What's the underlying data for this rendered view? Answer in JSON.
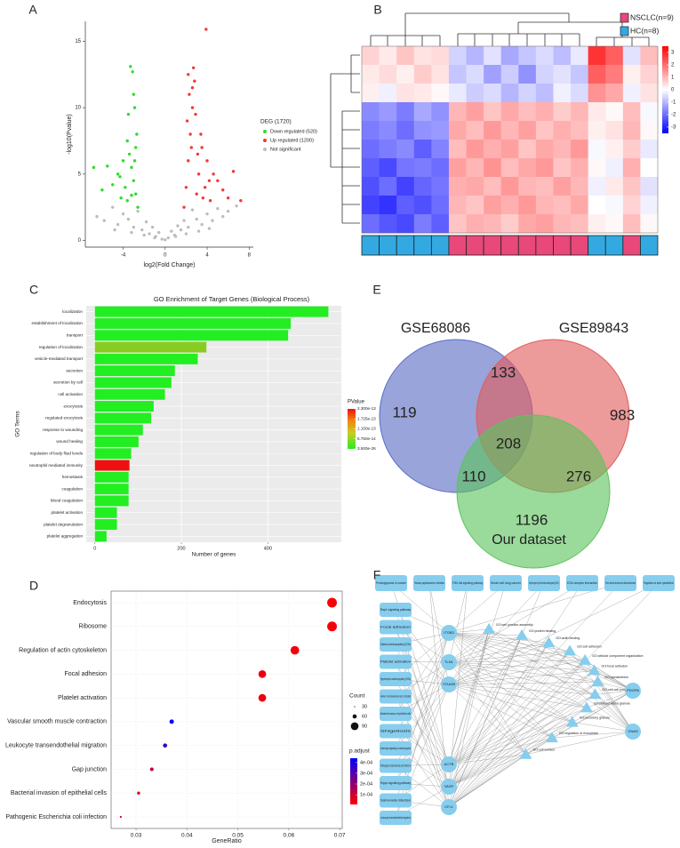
{
  "chart_data": [
    {
      "label": "A",
      "type": "scatter",
      "x_label": "log2(Fold Change)",
      "y_label": "-log10(Pvalue)",
      "xlim": [
        -7.6,
        8.4
      ],
      "ylim": [
        -0.5,
        16.5
      ],
      "xticks": [
        -4,
        0,
        4,
        8
      ],
      "yticks": [
        0,
        5,
        10,
        15
      ],
      "legend_title": "DEG (1720)",
      "series": [
        {
          "name": "Down regulated (520)",
          "color": "#2edb2e",
          "x": [
            -2.6,
            -2.8,
            -3,
            -3.2,
            -3.4,
            -3.6,
            -2.7,
            -2.9,
            -3.1,
            -3.5,
            -3.8,
            -4,
            -4.2,
            -4.5,
            -5,
            -5.5,
            -6,
            -6.8,
            -3.3,
            -2.8,
            -3,
            -3.6,
            -4.3,
            -2.9,
            -3.2
          ],
          "y": [
            2.5,
            3.5,
            4.5,
            5.5,
            6.5,
            3.0,
            8.0,
            10.0,
            12.7,
            9.5,
            4.0,
            6.0,
            3.2,
            5.0,
            4.2,
            5.6,
            3.8,
            5.5,
            13.1,
            7.0,
            11.0,
            7.5,
            4.8,
            6.0,
            3.4
          ]
        },
        {
          "name": "Up regulated (1200)",
          "color": "#ee3b3b",
          "x": [
            1.8,
            2,
            2.2,
            2.4,
            2.6,
            2.8,
            3,
            3.2,
            3.5,
            3.8,
            4,
            4.3,
            4.6,
            5,
            5.5,
            6,
            6.5,
            7.2,
            2.1,
            2.3,
            2.5,
            2.7,
            2.9,
            3.9,
            2.2,
            3.1,
            3.6,
            4.2,
            2.6,
            3.4
          ],
          "y": [
            2.5,
            4,
            6,
            8,
            10,
            12,
            3.5,
            5,
            7,
            4,
            6,
            3,
            5,
            4.5,
            3.8,
            3.2,
            5.2,
            3,
            9,
            11,
            7,
            13,
            9.5,
            15.9,
            12.5,
            6.5,
            3.2,
            4.5,
            11.5,
            8
          ]
        },
        {
          "name": "Not significant",
          "color": "#bdbdbd",
          "x": [
            -6.5,
            -5.8,
            -5,
            -4.5,
            -4,
            -3.5,
            -3,
            -2.6,
            -2.2,
            -1.8,
            -1.5,
            -1.2,
            -0.9,
            -0.6,
            -0.3,
            0,
            0.3,
            0.6,
            0.9,
            1.2,
            1.5,
            1.8,
            2.2,
            2.6,
            3,
            3.5,
            4,
            4.5,
            5,
            5.5,
            6,
            6.8,
            -3.2,
            -2,
            -1,
            1,
            2,
            3.2,
            4.2,
            -4.8
          ],
          "y": [
            1.8,
            1.5,
            2.5,
            1.2,
            2.0,
            1.6,
            1.0,
            2.2,
            0.8,
            1.4,
            0.5,
            1.0,
            0.3,
            0.6,
            0.1,
            0.05,
            0.2,
            0.7,
            0.4,
            1.1,
            0.8,
            1.5,
            1.0,
            2.3,
            1.6,
            1.2,
            2.0,
            1.5,
            2.4,
            1.8,
            2.2,
            2.6,
            0.6,
            0.4,
            0.2,
            0.3,
            0.5,
            0.7,
            0.9,
            0.8
          ]
        }
      ]
    },
    {
      "label": "B",
      "type": "heatmap",
      "groups": [
        {
          "name": "NSCLC(n=9)",
          "color": "#e8487a"
        },
        {
          "name": "HC(n=8)",
          "color": "#33a9e2"
        }
      ],
      "column_group": [
        1,
        1,
        1,
        1,
        1,
        0,
        0,
        0,
        0,
        0,
        0,
        0,
        0,
        1,
        1,
        0,
        1
      ],
      "clim": [
        -3.5,
        3.5
      ],
      "colorbar_ticks": [
        3,
        2,
        1,
        0,
        -1,
        -2,
        -3
      ],
      "values": [
        [
          0.6,
          0.3,
          0.8,
          0.4,
          0.5,
          -0.6,
          -1.0,
          -0.4,
          -1.2,
          -0.8,
          -0.5,
          -0.9,
          -0.3,
          2.8,
          2.2,
          -0.4,
          0.9
        ],
        [
          0.3,
          0.5,
          0.2,
          0.7,
          0.4,
          -0.8,
          -0.5,
          -1.3,
          -0.7,
          -1.5,
          -0.6,
          -0.4,
          -0.8,
          2.2,
          1.8,
          0.2,
          0.6
        ],
        [
          0.2,
          -0.2,
          0.4,
          0.3,
          0.1,
          -0.3,
          -0.7,
          -0.5,
          -1.0,
          -0.6,
          -0.9,
          -0.2,
          -0.5,
          1.5,
          1.2,
          -0.2,
          0.4
        ],
        [
          -1.6,
          -1.4,
          -1.8,
          -1.2,
          -1.5,
          1.0,
          1.3,
          0.8,
          1.2,
          0.9,
          1.1,
          0.7,
          1.0,
          0.3,
          0.1,
          0.9,
          -0.1
        ],
        [
          -1.8,
          -1.6,
          -2.0,
          -1.5,
          -1.4,
          1.2,
          0.9,
          1.4,
          1.0,
          1.3,
          0.8,
          1.1,
          0.9,
          0.2,
          0.4,
          1.0,
          0.1
        ],
        [
          -2.0,
          -1.8,
          -1.6,
          -2.2,
          -1.7,
          0.9,
          1.4,
          1.1,
          1.3,
          0.8,
          1.2,
          1.0,
          1.4,
          -0.1,
          0.2,
          0.7,
          -0.3
        ],
        [
          -2.2,
          -2.5,
          -1.9,
          -1.8,
          -2.0,
          1.3,
          1.0,
          1.5,
          0.9,
          1.2,
          1.4,
          0.8,
          1.1,
          0.1,
          -0.2,
          1.1,
          0.0
        ],
        [
          -2.4,
          -2.0,
          -2.6,
          -2.1,
          -1.9,
          1.1,
          1.2,
          0.9,
          1.4,
          1.0,
          0.9,
          1.3,
          1.0,
          -0.2,
          0.3,
          0.8,
          -0.4
        ],
        [
          -2.6,
          -2.8,
          -2.2,
          -2.4,
          -2.0,
          1.0,
          0.8,
          1.3,
          1.1,
          1.4,
          1.0,
          0.9,
          1.2,
          0.0,
          -0.1,
          0.6,
          -0.2
        ],
        [
          -2.0,
          -2.3,
          -2.5,
          -1.8,
          -2.2,
          0.8,
          1.1,
          1.0,
          0.7,
          1.2,
          1.3,
          1.0,
          0.9,
          0.2,
          0.1,
          0.9,
          0.1
        ]
      ]
    },
    {
      "label": "C",
      "type": "barh",
      "title": "GO Enrichment of Target Genes (Biological Process)",
      "x_label": "Number of genes",
      "y_label": "GO Terms",
      "categories": [
        "localization",
        "establishment of localization",
        "transport",
        "regulation of localization",
        "vesicle-mediated transport",
        "secretion",
        "secretion by cell",
        "cell activation",
        "exocytosis",
        "regulated exocytosis",
        "response to wounding",
        "wound healing",
        "regulation of body fluid levels",
        "neutrophil mediated immunity",
        "hemostasis",
        "coagulation",
        "blood coagulation",
        "platelet activation",
        "platelet degranulation",
        "platelet aggregation"
      ],
      "values": [
        540,
        453,
        447,
        258,
        238,
        185,
        177,
        162,
        136,
        130,
        111,
        101,
        84,
        80,
        78,
        78,
        78,
        51,
        51,
        27
      ],
      "colors": [
        "#22ee22",
        "#22ee22",
        "#22ee22",
        "#88cc22",
        "#22ee22",
        "#22ee22",
        "#22ee22",
        "#22ee22",
        "#22ee22",
        "#22ee22",
        "#22ee22",
        "#22ee22",
        "#22ee22",
        "#ee1111",
        "#22ee22",
        "#22ee22",
        "#22ee22",
        "#22ee22",
        "#22ee22",
        "#22ee22"
      ],
      "xlim": [
        -20,
        570
      ],
      "xticks": [
        0,
        200,
        400
      ],
      "legend_title": "PValue",
      "legend_ticks": [
        {
          "value": 2.3e-13,
          "label": "2.300e-13"
        },
        {
          "value": 1.725e-13,
          "label": "1.725e-13"
        },
        {
          "value": 1.15e-13,
          "label": "1.150e-13"
        },
        {
          "value": 5.75e-14,
          "label": "5.750e-14"
        },
        {
          "value": 3.5e-26,
          "label": "3.500e-26"
        }
      ]
    },
    {
      "label": "D",
      "type": "dot",
      "x_label": "GeneRatio",
      "categories": [
        "Endocytosis",
        "Ribosome",
        "Regulation of actin cytoskeleton",
        "Focal adhesion",
        "Platelet activation",
        "Vascular smooth muscle contraction",
        "Leukocyte transendothelial migration",
        "Gap junction",
        "Bacterial invasion of epithelial cells",
        "Pathogenic Escherichia coli infection"
      ],
      "values": [
        0.0685,
        0.0685,
        0.0612,
        0.0548,
        0.0548,
        0.037,
        0.0357,
        0.0331,
        0.0305,
        0.027
      ],
      "counts": [
        107,
        107,
        98,
        90,
        90,
        62,
        60,
        56,
        51,
        42
      ],
      "p_adjust": [
        2e-05,
        2e-05,
        3e-05,
        4e-05,
        4e-05,
        0.00043,
        0.00034,
        0.00012,
        6e-05,
        5e-05
      ],
      "xlim": [
        0.0251,
        0.0705
      ],
      "xticks": [
        0.03,
        0.04,
        0.05,
        0.06,
        0.07
      ],
      "size_title": "Count",
      "size_ticks": [
        30,
        60,
        90
      ],
      "color_title": "p.adjust",
      "clim": [
        1e-05,
        0.00044
      ],
      "color_ticks": [
        {
          "value": 0.0004,
          "label": "4e-04"
        },
        {
          "value": 0.0003,
          "label": "3e-04"
        },
        {
          "value": 0.0002,
          "label": "2e-04"
        },
        {
          "value": 0.0001,
          "label": "1e-04"
        }
      ]
    },
    {
      "label": "E",
      "type": "venn",
      "sets": [
        {
          "name": "GSE68086",
          "color": "#5a6cc4"
        },
        {
          "name": "GSE89843",
          "color": "#e05c5c"
        },
        {
          "name": "Our dataset",
          "color": "#5cc45c"
        }
      ],
      "regions": [
        119,
        133,
        983,
        208,
        110,
        276,
        1196
      ]
    },
    {
      "label": "F",
      "type": "network",
      "pathways_top": [
        "Proteoglycans in cancer",
        "Human papillomavirus infection",
        "PI3K-Akt signaling pathway",
        "Small cell lung cancer",
        "Arrhythmogenic right ventricular cardiomyopathy (ARVC)",
        "ECM-receptor interaction",
        "Fluid shear stress and atherosclerosis",
        "Regulation of actin cytoskeleton"
      ],
      "pathways_left": [
        "Rap1 signaling pathway",
        "Focal adhesion",
        "Dilated cardiomyopathy (DCM)",
        "Platelet activation",
        "Hypertrophic cardiomyopathy (HCM)",
        "Human T-cell leukemia virus 1 infection",
        "Bacterial invasion of epithelial cells",
        "Shigellosis",
        "Adrenergic signaling in cardiomyocytes",
        "Pathogenic Escherichia coli infection",
        "Hippo signaling pathway",
        "Salmonella infection",
        "Leukocyte transendothelial migration"
      ],
      "genes_left": [
        "ITGB3",
        "TLN1",
        "ITGA2B",
        "ACTB",
        "VASP",
        "CFL1"
      ],
      "genes_right": [
        "PDGFB",
        "GNAS"
      ],
      "go_terms": [
        "GO:cell junction assembly",
        "GO:protein binding",
        "GO:actin binding",
        "GO:cell adhesion",
        "GO:cellular component organization",
        "GO:focal adhesion",
        "GO:cytoskeleton",
        "GO:cell-cell junction",
        "GO:platelet alpha granule",
        "GO:secretory granule",
        "GO:regulation of exocytosis",
        "GO:cell surface"
      ]
    }
  ]
}
